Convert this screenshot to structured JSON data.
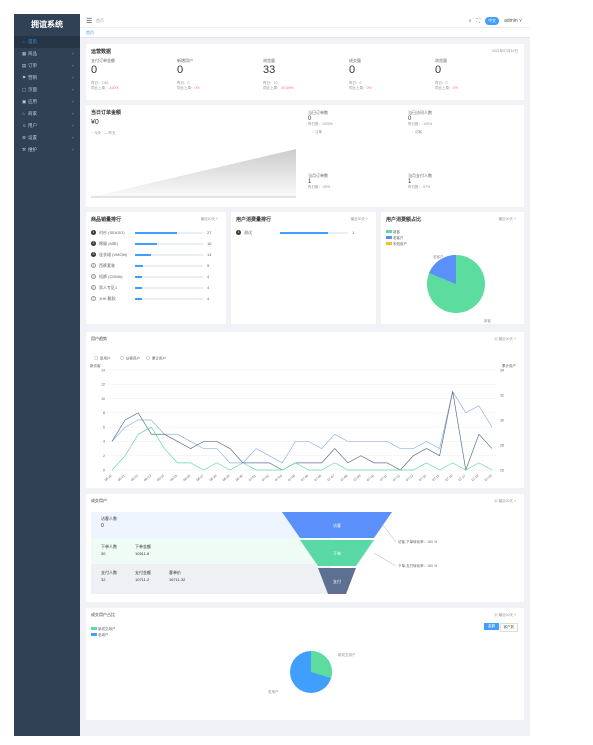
{
  "app": {
    "title": "拥谊系统"
  },
  "sidebar": {
    "items": [
      {
        "icon": "home-icon",
        "label": "首页",
        "active": true
      },
      {
        "icon": "goods-icon",
        "label": "商品"
      },
      {
        "icon": "order-icon",
        "label": "订单"
      },
      {
        "icon": "marketing-icon",
        "label": "营销"
      },
      {
        "icon": "page-icon",
        "label": "页面"
      },
      {
        "icon": "apply-icon",
        "label": "应用"
      },
      {
        "icon": "store-icon",
        "label": "商家"
      },
      {
        "icon": "user-icon",
        "label": "用户"
      },
      {
        "icon": "setting-icon",
        "label": "设置"
      },
      {
        "icon": "maintain-icon",
        "label": "维护"
      }
    ]
  },
  "navbar": {
    "breadcrumb": "首页",
    "lang": "中文",
    "user": "admin"
  },
  "tags": {
    "current": "首页"
  },
  "overview": {
    "title": "运营数据",
    "date": "2021年07月19日",
    "metrics": [
      {
        "label": "支付订单金额",
        "value": "0",
        "sub1": "昨日：1.50",
        "sub2_label": "同比上周：",
        "sub2_value": "-100%"
      },
      {
        "label": "新增用户",
        "value": "0",
        "sub1": "昨日：0",
        "sub2_label": "同比上周：",
        "sub2_value": "0%"
      },
      {
        "label": "浏览量",
        "value": "33",
        "sub1": "昨日：70",
        "sub2_label": "同比上周：",
        "sub2_value": "-57.69%"
      },
      {
        "label": "成交量",
        "value": "0",
        "sub1": "昨日：0",
        "sub2_label": "同比上周：",
        "sub2_value": "0%"
      },
      {
        "label": "浏览量",
        "value": "0",
        "sub1": "昨日：0",
        "sub2_label": "同比上周：",
        "sub2_value": "0%"
      }
    ]
  },
  "realtime": {
    "title": "当日订单金额",
    "value": "¥0",
    "legend": [
      "今天",
      "昨天"
    ],
    "stats": [
      {
        "label": "当日订单数",
        "value": "0",
        "sub": "昨日数：1000%",
        "icon_label": "订单"
      },
      {
        "label": "当日访问人数",
        "value": "0",
        "sub": "昨日数：-100%",
        "icon_label": "访客"
      },
      {
        "label": "当月订单数",
        "value": "1",
        "sub": "昨日数：-99%"
      },
      {
        "label": "当月支付人数",
        "value": "1",
        "sub": "昨日数：-97%"
      }
    ]
  },
  "product_rank": {
    "title": "商品销量排行",
    "filter": "最近30天",
    "rows": [
      {
        "name": "衬衫 (SEASO)",
        "value": "27",
        "pct": 0.62
      },
      {
        "name": "棉服 (M年)",
        "value": "16",
        "pct": 0.32
      },
      {
        "name": "连衣裙 (VMOM)",
        "value": "14",
        "pct": 0.24
      },
      {
        "name": "西裤套装",
        "value": "5",
        "pct": 0.12
      },
      {
        "name": "短裤 (CDMA)",
        "value": "4",
        "pct": 0.1
      },
      {
        "name": "男人专区1",
        "value": "4",
        "pct": 0.1
      },
      {
        "name": "JHK 靴款",
        "value": "4",
        "pct": 0.1
      }
    ]
  },
  "user_rank": {
    "title": "用户消费量排行",
    "filter": "最近30天",
    "rows": [
      {
        "name": "测试",
        "value": "1",
        "pct": 0.7
      }
    ]
  },
  "user_share": {
    "title": "用户消费额占比",
    "filter": "最近30天",
    "legend": [
      "新客",
      "老客户",
      "未知用户"
    ],
    "slice_labels": [
      "老客户",
      "新客"
    ]
  },
  "user_trend": {
    "title": "用户趋势",
    "filter": "最近30天",
    "legend": [
      "新用户",
      "访客用户",
      "累计用户"
    ],
    "left_axis_label": "新访客",
    "right_axis_label": "累计用户",
    "left_ticks": [
      "14",
      "12",
      "10",
      "8",
      "6",
      "4",
      "2",
      "0"
    ],
    "right_ticks": [
      "34",
      "32",
      "30",
      "28",
      "26"
    ],
    "x_labels": [
      "06-20",
      "06-21",
      "06-22",
      "06-23",
      "06-24",
      "06-25",
      "06-26",
      "06-27",
      "06-28",
      "06-29",
      "06-30",
      "07-01",
      "07-02",
      "07-03",
      "07-04",
      "07-05",
      "07-06",
      "07-07",
      "07-08",
      "07-09",
      "07-10",
      "07-11",
      "07-12",
      "07-13",
      "07-14",
      "07-15",
      "07-16",
      "07-17",
      "07-18",
      "07-19"
    ],
    "series_new": [
      0,
      2,
      5,
      6,
      3,
      1,
      1,
      0,
      1,
      0,
      1,
      0,
      0,
      0,
      1,
      0,
      0,
      1,
      0,
      0,
      0,
      0,
      0,
      0,
      1,
      0,
      1,
      0,
      1,
      0
    ],
    "series_visit": [
      4,
      6,
      7,
      7,
      5,
      5,
      4,
      3,
      3,
      1,
      1,
      3,
      2,
      1,
      4,
      4,
      3,
      5,
      4,
      4,
      4,
      4,
      3,
      3,
      4,
      3,
      11,
      8,
      9,
      6
    ],
    "series_total": [
      4,
      7,
      8,
      5,
      5,
      4,
      3,
      4,
      4,
      3,
      1,
      1,
      1,
      0,
      1,
      1,
      1,
      3,
      1,
      2,
      1,
      1,
      0,
      2,
      3,
      2,
      11,
      0,
      5,
      3
    ]
  },
  "funnel": {
    "title": "成交用户",
    "filter": "最近30天",
    "rows": [
      {
        "label": "访客人数",
        "value": "0"
      },
      {
        "labels": [
          "下单人数",
          "下单金额"
        ],
        "values": [
          "30",
          "10511.8"
        ]
      },
      {
        "labels": [
          "支付人数",
          "支付金额",
          "客单价"
        ],
        "values": [
          "32",
          "10711.2",
          "16711.32"
        ]
      }
    ],
    "stages": [
      "访客",
      "下单",
      "支付"
    ],
    "rates": [
      {
        "label": "访客-下单转化率：",
        "value": "100 %"
      },
      {
        "label": "下单-支付转化率：",
        "value": "100 %"
      }
    ]
  },
  "pay_share": {
    "title": "成交用户占比",
    "filter": "最近30天",
    "tabs": [
      "金额",
      "客户数"
    ],
    "legend": [
      "新成交用户",
      "老用户"
    ],
    "slice_labels": [
      "新成交用户",
      "老用户"
    ]
  },
  "colors": {
    "accent": "#409eff",
    "green": "#5ddc9f",
    "sidebar": "#304156",
    "funnel1": "#5b8ff9",
    "funnel2": "#5ad8a6",
    "funnel3": "#5d7092"
  }
}
